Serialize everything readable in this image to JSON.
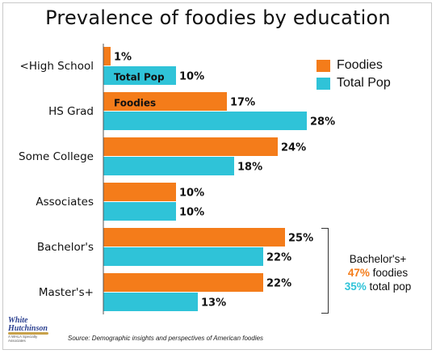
{
  "title": "Prevalence of foodies by education",
  "colors": {
    "foodies": "#f47c1a",
    "total_pop": "#2fc3d8"
  },
  "chart_data": {
    "type": "bar",
    "orientation": "horizontal",
    "title": "Prevalence of foodies by education",
    "categories": [
      "<High School",
      "HS Grad",
      "Some College",
      "Associates",
      "Bachelor's",
      "Master's+"
    ],
    "series": [
      {
        "name": "Foodies",
        "values": [
          1,
          17,
          24,
          10,
          25,
          22
        ],
        "labels": [
          "1%",
          "17%",
          "24%",
          "10%",
          "25%",
          "22%"
        ]
      },
      {
        "name": "Total Pop",
        "values": [
          10,
          28,
          18,
          10,
          22,
          13
        ],
        "labels": [
          "10%",
          "28%",
          "18%",
          "10%",
          "22%",
          "13%"
        ]
      }
    ],
    "in_bar_labels": [
      {
        "series": 1,
        "category": 0,
        "text": "Total Pop"
      },
      {
        "series": 0,
        "category": 1,
        "text": "Foodies"
      }
    ],
    "xlim": [
      0,
      28
    ],
    "grid": false,
    "legend": "top-right"
  },
  "legend": {
    "items": [
      "Foodies",
      "Total Pop"
    ]
  },
  "annotation": {
    "line1": "Bachelor's+",
    "foodies_pct": "47%",
    "foodies_text": " foodies",
    "total_pct": "35%",
    "total_text": " total pop"
  },
  "logo": {
    "line1": "White",
    "line2": "Hutchinson",
    "tagline": "A WHLA Specialty Associates"
  },
  "source": "Source: Demographic insights and perspectives of American foodies"
}
